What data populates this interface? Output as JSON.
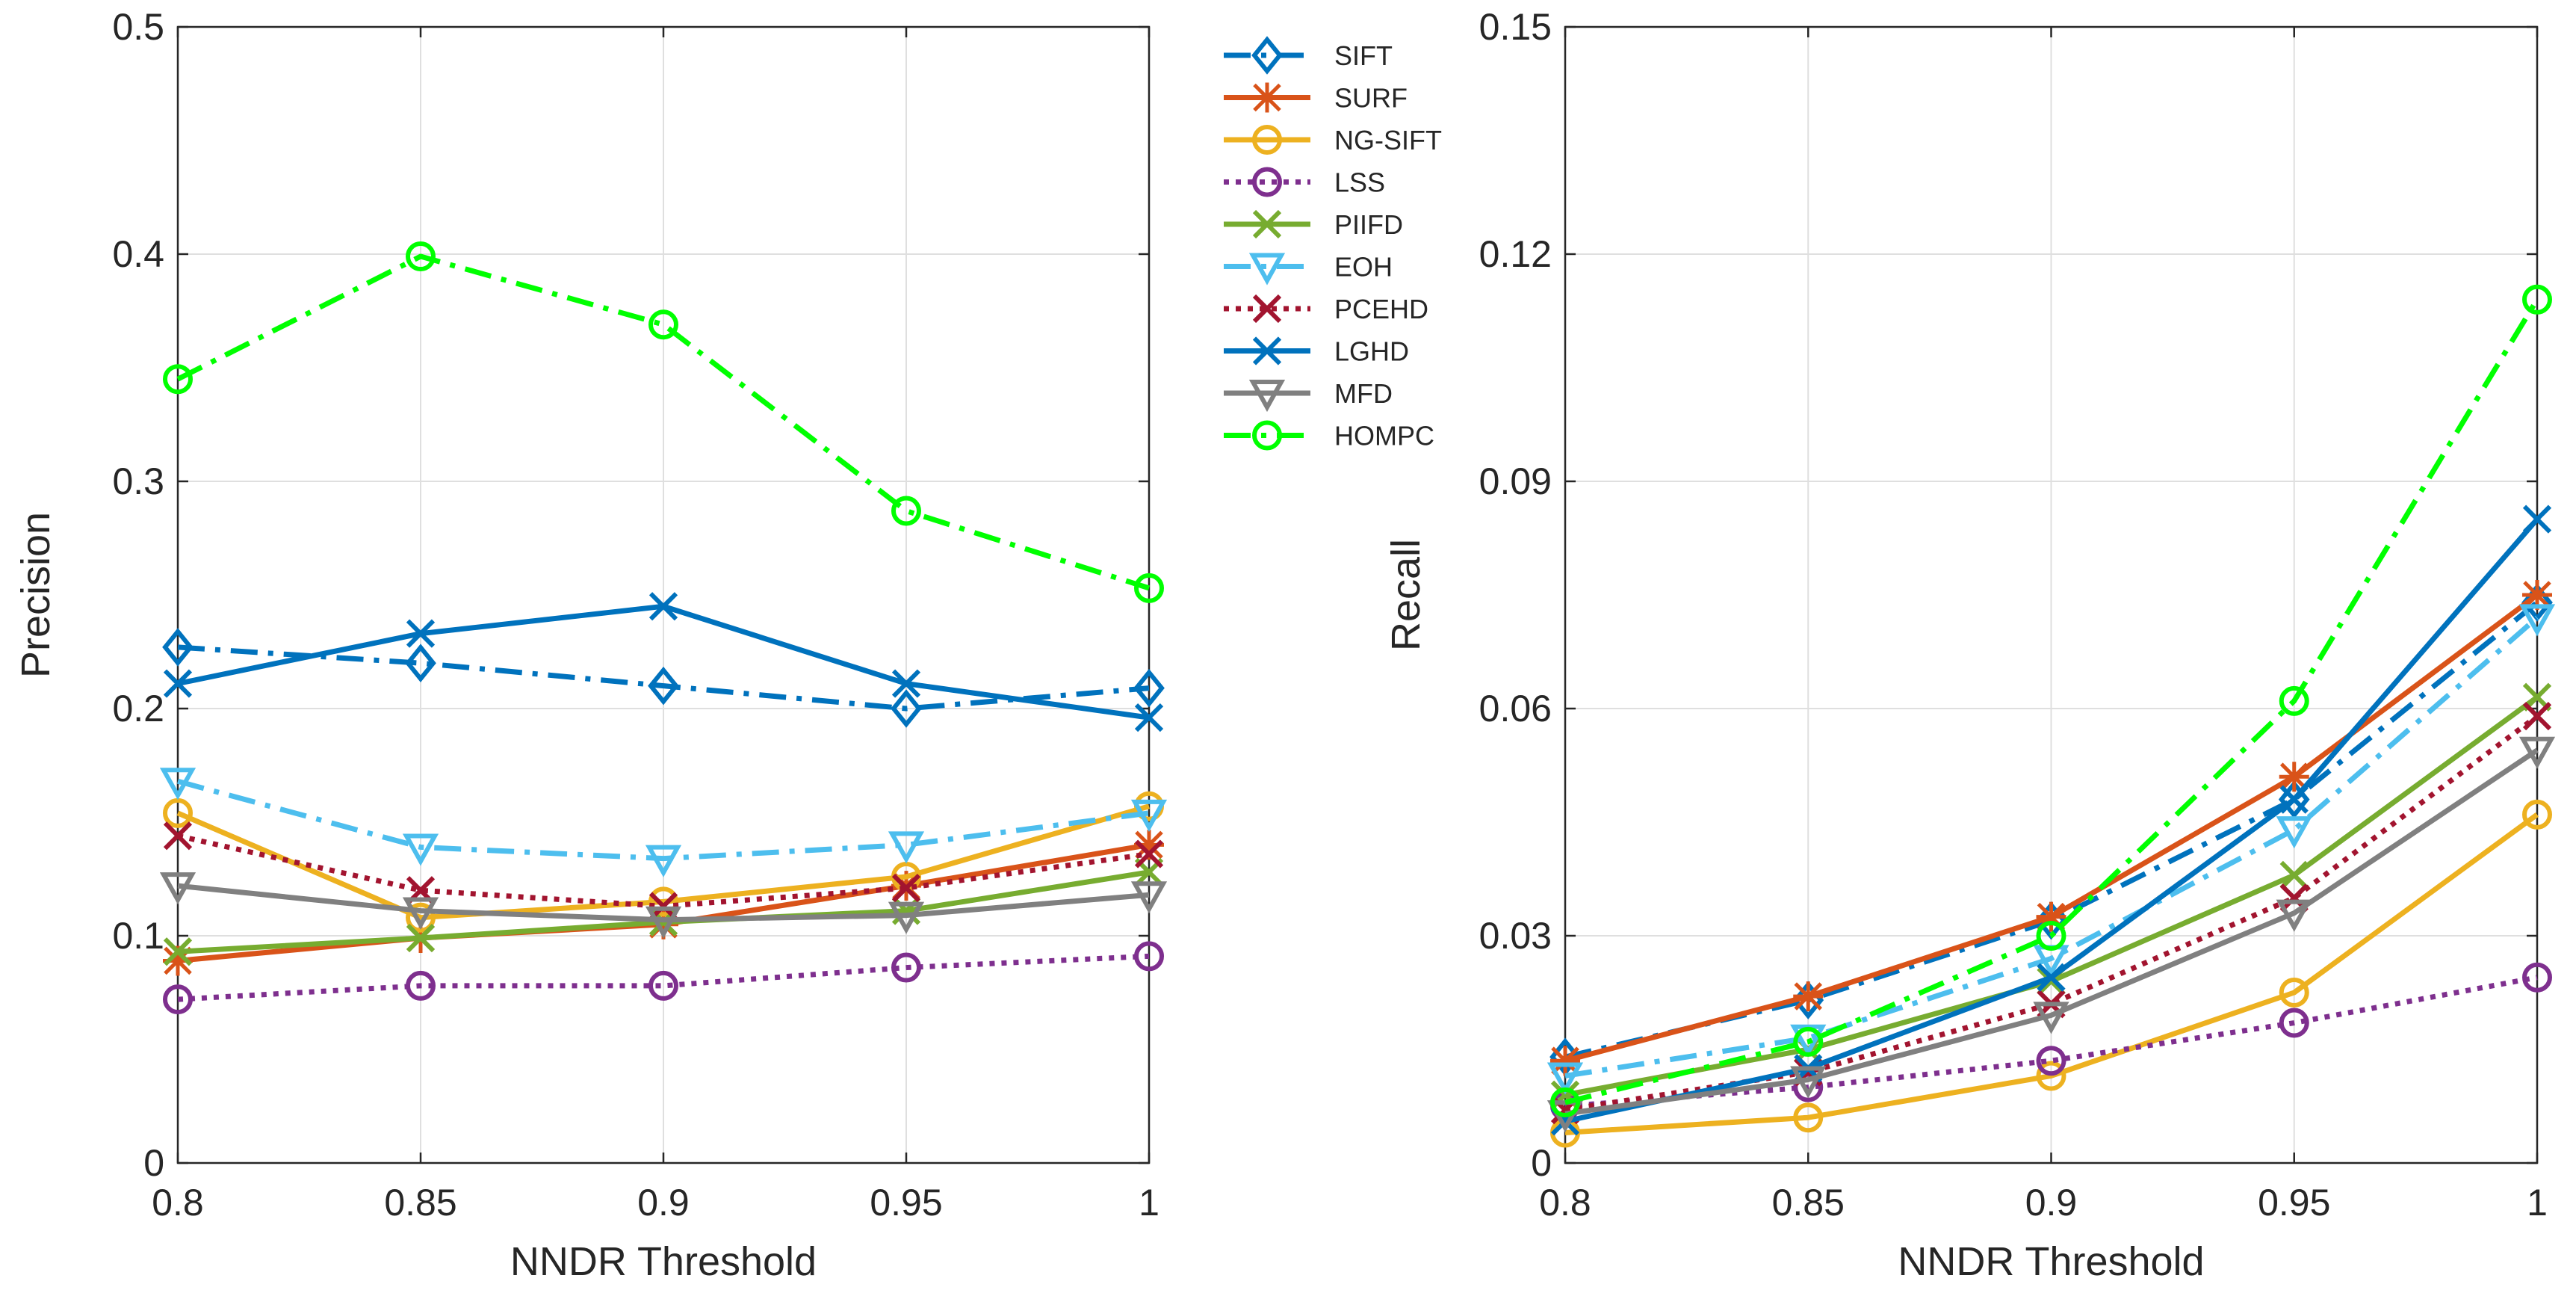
{
  "chart_data": [
    {
      "type": "line",
      "title": "",
      "xlabel": "NNDR Threshold",
      "ylabel": "Precision",
      "xlim": [
        0.8,
        1
      ],
      "ylim": [
        0,
        0.5
      ],
      "xticks": [
        0.8,
        0.85,
        0.9,
        0.95,
        1
      ],
      "xtick_labels": [
        "0.8",
        "0.85",
        "0.9",
        "0.95",
        "1"
      ],
      "yticks": [
        0,
        0.1,
        0.2,
        0.3,
        0.4,
        0.5
      ],
      "ytick_labels": [
        "0",
        "0.1",
        "0.2",
        "0.3",
        "0.4",
        "0.5"
      ],
      "grid": true,
      "x": [
        0.8,
        0.85,
        0.9,
        0.95,
        1
      ],
      "series": [
        {
          "name": "SIFT",
          "color": "#0072BD",
          "dash": "dashdot",
          "marker": "diamond",
          "values": [
            0.227,
            0.22,
            0.21,
            0.2,
            0.209
          ]
        },
        {
          "name": "SURF",
          "color": "#D95319",
          "dash": "solid",
          "marker": "asterisk",
          "values": [
            0.089,
            0.099,
            0.105,
            0.122,
            0.14
          ]
        },
        {
          "name": "NG-SIFT",
          "color": "#EDB120",
          "dash": "solid",
          "marker": "circle",
          "values": [
            0.154,
            0.108,
            0.115,
            0.126,
            0.157
          ]
        },
        {
          "name": "LSS",
          "color": "#7E2F8E",
          "dash": "dotted",
          "marker": "circle",
          "values": [
            0.072,
            0.078,
            0.078,
            0.086,
            0.091
          ]
        },
        {
          "name": "PIIFD",
          "color": "#77AC30",
          "dash": "solid",
          "marker": "x",
          "values": [
            0.093,
            0.099,
            0.106,
            0.111,
            0.128
          ]
        },
        {
          "name": "EOH",
          "color": "#4DBEEE",
          "dash": "dashdot",
          "marker": "triangle-down",
          "values": [
            0.168,
            0.139,
            0.134,
            0.14,
            0.154
          ]
        },
        {
          "name": "PCEHD",
          "color": "#A2142F",
          "dash": "dotted",
          "marker": "x",
          "values": [
            0.144,
            0.12,
            0.113,
            0.121,
            0.136
          ]
        },
        {
          "name": "LGHD",
          "color": "#0072BD",
          "dash": "solid",
          "marker": "x",
          "values": [
            0.211,
            0.233,
            0.245,
            0.211,
            0.196
          ]
        },
        {
          "name": "MFD",
          "color": "#808080",
          "dash": "solid",
          "marker": "triangle-down",
          "values": [
            0.122,
            0.111,
            0.107,
            0.109,
            0.118
          ]
        },
        {
          "name": "HOMPC",
          "color": "#00FF00",
          "dash": "dashdot",
          "marker": "circle",
          "values": [
            0.345,
            0.399,
            0.369,
            0.287,
            0.253
          ]
        }
      ],
      "legend": "outside-right-top"
    },
    {
      "type": "line",
      "title": "",
      "xlabel": "NNDR Threshold",
      "ylabel": "Recall",
      "xlim": [
        0.8,
        1
      ],
      "ylim": [
        0,
        0.15
      ],
      "xticks": [
        0.8,
        0.85,
        0.9,
        0.95,
        1
      ],
      "xtick_labels": [
        "0.8",
        "0.85",
        "0.9",
        "0.95",
        "1"
      ],
      "yticks": [
        0,
        0.03,
        0.06,
        0.09,
        0.12,
        0.15
      ],
      "ytick_labels": [
        "0",
        "0.03",
        "0.06",
        "0.09",
        "0.12",
        "0.15"
      ],
      "grid": true,
      "x": [
        0.8,
        0.85,
        0.9,
        0.95,
        1
      ],
      "series": [
        {
          "name": "SIFT",
          "color": "#0072BD",
          "dash": "dashdot",
          "marker": "diamond",
          "values": [
            0.014,
            0.0215,
            0.032,
            0.048,
            0.074
          ]
        },
        {
          "name": "SURF",
          "color": "#D95319",
          "dash": "solid",
          "marker": "asterisk",
          "values": [
            0.0135,
            0.022,
            0.0325,
            0.051,
            0.075
          ]
        },
        {
          "name": "NG-SIFT",
          "color": "#EDB120",
          "dash": "solid",
          "marker": "circle",
          "values": [
            0.004,
            0.006,
            0.0115,
            0.0225,
            0.046
          ]
        },
        {
          "name": "LSS",
          "color": "#7E2F8E",
          "dash": "dotted",
          "marker": "circle",
          "values": [
            0.0075,
            0.01,
            0.0135,
            0.0185,
            0.0245
          ]
        },
        {
          "name": "PIIFD",
          "color": "#77AC30",
          "dash": "solid",
          "marker": "x",
          "values": [
            0.009,
            0.015,
            0.024,
            0.038,
            0.0615
          ]
        },
        {
          "name": "EOH",
          "color": "#4DBEEE",
          "dash": "dashdot",
          "marker": "triangle-down",
          "values": [
            0.0115,
            0.0165,
            0.027,
            0.044,
            0.072
          ]
        },
        {
          "name": "PCEHD",
          "color": "#A2142F",
          "dash": "dotted",
          "marker": "x",
          "values": [
            0.007,
            0.012,
            0.021,
            0.035,
            0.059
          ]
        },
        {
          "name": "LGHD",
          "color": "#0072BD",
          "dash": "solid",
          "marker": "x",
          "values": [
            0.0055,
            0.0125,
            0.0245,
            0.048,
            0.085
          ]
        },
        {
          "name": "MFD",
          "color": "#808080",
          "dash": "solid",
          "marker": "triangle-down",
          "values": [
            0.0065,
            0.011,
            0.0195,
            0.033,
            0.0545
          ]
        },
        {
          "name": "HOMPC",
          "color": "#00FF00",
          "dash": "dashdot",
          "marker": "circle",
          "values": [
            0.008,
            0.016,
            0.03,
            0.061,
            0.114
          ]
        }
      ]
    }
  ]
}
